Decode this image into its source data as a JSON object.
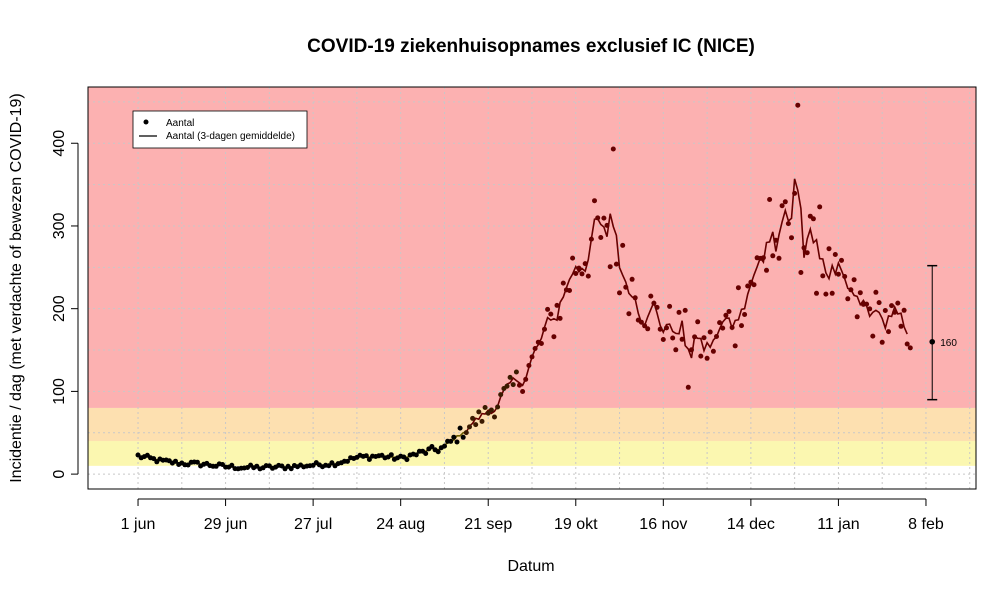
{
  "chart_data": {
    "type": "line",
    "title": "COVID-19 ziekenhuisopnames exclusief IC (NICE)",
    "xlabel": "Datum",
    "ylabel": "Incidentie / dag (met verdachte of bewezen COVID-19)",
    "x_axis": {
      "type": "date",
      "range": [
        "2020-05-16",
        "2021-02-24"
      ],
      "ticks": [
        {
          "date": "2020-06-01",
          "label": "1 jun"
        },
        {
          "date": "2020-06-29",
          "label": "29 jun"
        },
        {
          "date": "2020-07-27",
          "label": "27 jul"
        },
        {
          "date": "2020-08-24",
          "label": "24 aug"
        },
        {
          "date": "2020-09-21",
          "label": "21 sep"
        },
        {
          "date": "2020-10-19",
          "label": "19 okt"
        },
        {
          "date": "2020-11-16",
          "label": "16 nov"
        },
        {
          "date": "2020-12-14",
          "label": "14 dec"
        },
        {
          "date": "2021-01-11",
          "label": "11 jan"
        },
        {
          "date": "2021-02-08",
          "label": "8 feb"
        }
      ]
    },
    "y_axis": {
      "range": [
        -18,
        468
      ],
      "ticks": [
        0,
        100,
        200,
        300,
        400
      ]
    },
    "grid": true,
    "background_bands": [
      {
        "from": -18,
        "to": 10,
        "color": "#ffffff"
      },
      {
        "from": 10,
        "to": 40,
        "color": "#fbf7b0"
      },
      {
        "from": 40,
        "to": 80,
        "color": "#fde0b0"
      },
      {
        "from": 80,
        "to": 468,
        "color": "#fcb1b1"
      }
    ],
    "legend": {
      "placement": "top-left",
      "entries": [
        {
          "label": "Aantal",
          "symbol": "point"
        },
        {
          "label": "Aantal (3-dagen gemiddelde)",
          "symbol": "line"
        }
      ]
    },
    "annotation": {
      "date": "2021-02-10",
      "value": 160,
      "lower": 90,
      "upper": 252,
      "label": "160"
    },
    "daily_anchors": [
      {
        "date": "2020-06-01",
        "value": 22
      },
      {
        "date": "2020-06-08",
        "value": 16
      },
      {
        "date": "2020-06-15",
        "value": 13
      },
      {
        "date": "2020-06-22",
        "value": 12
      },
      {
        "date": "2020-06-29",
        "value": 9
      },
      {
        "date": "2020-07-06",
        "value": 8
      },
      {
        "date": "2020-07-13",
        "value": 8
      },
      {
        "date": "2020-07-20",
        "value": 9
      },
      {
        "date": "2020-07-27",
        "value": 11
      },
      {
        "date": "2020-08-03",
        "value": 13
      },
      {
        "date": "2020-08-10",
        "value": 20
      },
      {
        "date": "2020-08-17",
        "value": 22
      },
      {
        "date": "2020-08-24",
        "value": 19
      },
      {
        "date": "2020-08-31",
        "value": 26
      },
      {
        "date": "2020-09-07",
        "value": 32
      },
      {
        "date": "2020-09-14",
        "value": 55
      },
      {
        "date": "2020-09-21",
        "value": 76
      },
      {
        "date": "2020-09-28",
        "value": 100
      },
      {
        "date": "2020-10-05",
        "value": 135
      },
      {
        "date": "2020-10-12",
        "value": 190
      },
      {
        "date": "2020-10-19",
        "value": 255
      },
      {
        "date": "2020-10-26",
        "value": 290
      },
      {
        "date": "2020-11-02",
        "value": 250
      },
      {
        "date": "2020-11-09",
        "value": 210
      },
      {
        "date": "2020-11-16",
        "value": 180
      },
      {
        "date": "2020-11-23",
        "value": 170
      },
      {
        "date": "2020-11-30",
        "value": 150
      },
      {
        "date": "2020-12-07",
        "value": 185
      },
      {
        "date": "2020-12-14",
        "value": 235
      },
      {
        "date": "2020-12-21",
        "value": 270
      },
      {
        "date": "2020-12-28",
        "value": 300
      },
      {
        "date": "2021-01-04",
        "value": 260
      },
      {
        "date": "2021-01-11",
        "value": 225
      },
      {
        "date": "2021-01-18",
        "value": 200
      },
      {
        "date": "2021-01-25",
        "value": 190
      },
      {
        "date": "2021-02-01",
        "value": 175
      }
    ],
    "outliers": [
      {
        "date": "2020-10-31",
        "value": 393
      },
      {
        "date": "2020-12-29",
        "value": 446
      },
      {
        "date": "2021-01-05",
        "value": 323
      },
      {
        "date": "2020-12-20",
        "value": 332
      },
      {
        "date": "2020-12-09",
        "value": 155
      },
      {
        "date": "2020-11-24",
        "value": 105
      }
    ],
    "series": [
      {
        "name": "Aantal",
        "style": "points",
        "color_low": "#000000",
        "color_high": "#660000"
      },
      {
        "name": "Aantal (3-dagen gemiddelde)",
        "style": "line",
        "color_low": "#6b5a00",
        "color_high": "#660000"
      }
    ]
  }
}
